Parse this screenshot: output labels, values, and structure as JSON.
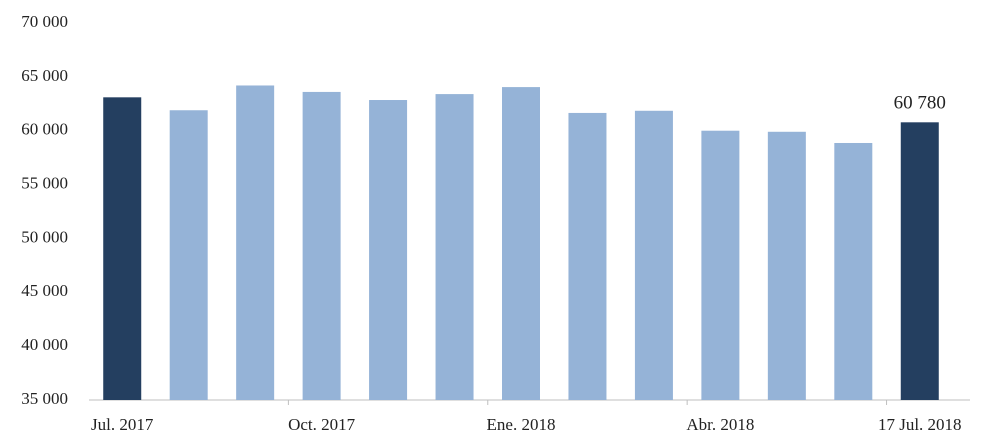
{
  "chart_data": {
    "type": "bar",
    "categories": [
      "Jul. 2017",
      null,
      null,
      "Oct. 2017",
      null,
      null,
      "Ene. 2018",
      null,
      null,
      "Abr. 2018",
      null,
      null,
      "17 Jul. 2018"
    ],
    "values": [
      63100,
      61900,
      64200,
      63600,
      62850,
      63400,
      64050,
      61650,
      61850,
      60000,
      59900,
      58860,
      60780
    ],
    "value_labels": [
      null,
      null,
      null,
      null,
      null,
      null,
      null,
      null,
      null,
      null,
      null,
      null,
      "60 780"
    ],
    "colors": [
      "#243f60",
      "#95b3d7",
      "#95b3d7",
      "#95b3d7",
      "#95b3d7",
      "#95b3d7",
      "#95b3d7",
      "#95b3d7",
      "#95b3d7",
      "#95b3d7",
      "#95b3d7",
      "#95b3d7",
      "#243f60"
    ],
    "ylim": [
      35000,
      70000
    ],
    "yticks": [
      {
        "value": 35000,
        "label": "35 000"
      },
      {
        "value": 40000,
        "label": "40 000"
      },
      {
        "value": 45000,
        "label": "45 000"
      },
      {
        "value": 50000,
        "label": "50 000"
      },
      {
        "value": 55000,
        "label": "55 000"
      },
      {
        "value": 60000,
        "label": "60 000"
      },
      {
        "value": 65000,
        "label": "65 000"
      },
      {
        "value": 70000,
        "label": "70 000"
      }
    ],
    "grid": false
  }
}
